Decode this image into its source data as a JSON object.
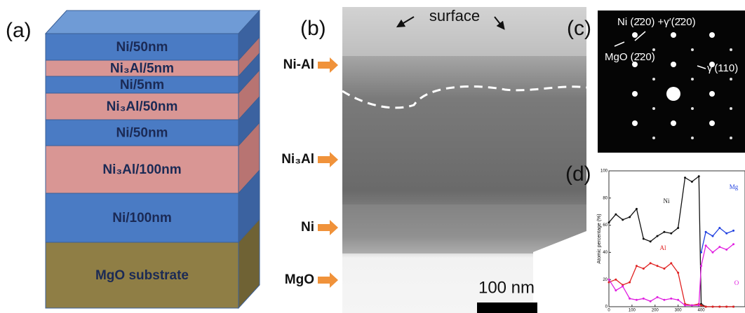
{
  "panel_a": {
    "label": "(a)",
    "layers": [
      "Ni/50nm",
      "Ni₃Al/5nm",
      "Ni/5nm",
      "Ni₃Al/50nm",
      "Ni/50nm",
      "Ni₃Al/100nm",
      "Ni/100nm",
      "MgO substrate"
    ]
  },
  "panel_b": {
    "label": "(b)",
    "surface": "surface",
    "regions": [
      "Ni-Al",
      "Ni₃Al",
      "Ni",
      "MgO"
    ],
    "scale_bar": "100 nm"
  },
  "panel_c": {
    "label": "(c)",
    "annotations": [
      "Ni (2̄20) +γ′(2̄20)",
      "MgO (2̄20)",
      "γ′(110)"
    ]
  },
  "chart_data": {
    "type": "line",
    "label": "(d)",
    "y_label": "Atomic percentage (%)",
    "x": [
      0,
      30,
      60,
      90,
      120,
      150,
      180,
      210,
      240,
      270,
      300,
      330,
      360,
      390,
      400,
      420,
      450,
      480,
      510,
      540
    ],
    "series": [
      {
        "name": "Ni",
        "color": "#111111",
        "values": [
          62,
          68,
          64,
          66,
          72,
          50,
          48,
          52,
          55,
          54,
          58,
          95,
          92,
          96,
          2,
          0,
          0,
          0,
          0,
          0
        ]
      },
      {
        "name": "Al",
        "color": "#e02020",
        "values": [
          18,
          20,
          16,
          18,
          30,
          28,
          32,
          30,
          28,
          32,
          25,
          2,
          1,
          2,
          1,
          0,
          0,
          0,
          0,
          0
        ]
      },
      {
        "name": "O",
        "color": "#e020e0",
        "values": [
          20,
          12,
          15,
          6,
          5,
          6,
          4,
          7,
          5,
          6,
          5,
          1,
          1,
          1,
          30,
          45,
          40,
          44,
          42,
          46
        ]
      },
      {
        "name": "Mg",
        "color": "#2040e0",
        "values": [
          null,
          null,
          null,
          null,
          null,
          null,
          null,
          null,
          null,
          null,
          null,
          null,
          null,
          null,
          40,
          55,
          52,
          58,
          54,
          56
        ]
      }
    ],
    "xlim": [
      0,
      590
    ],
    "ylim": [
      0,
      100
    ],
    "xticks": [
      0,
      100,
      200,
      300,
      400
    ],
    "yticks": [
      0,
      20,
      40,
      60,
      80,
      100
    ]
  }
}
